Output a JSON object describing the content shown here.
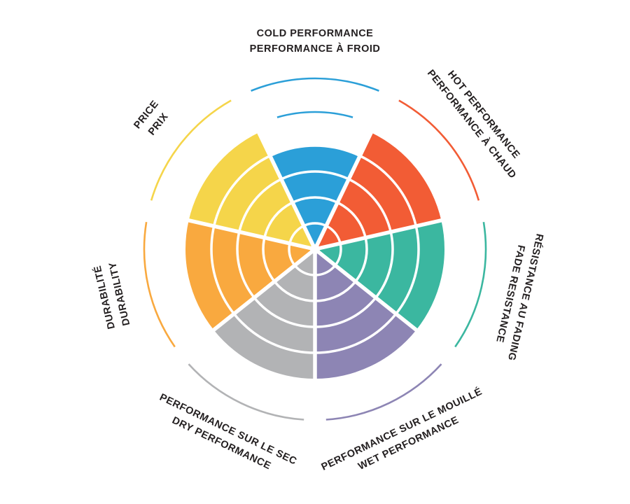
{
  "page": {
    "background": "#ffffff",
    "text_color": "#231f20"
  },
  "chart_data": {
    "type": "radar",
    "style": "segmented-sector-rose",
    "max_value": 5,
    "ring_levels": [
      1,
      2,
      3,
      4
    ],
    "text_color": "#231f20",
    "sectors": [
      {
        "id": "cold-performance",
        "label_en": "COLD PERFORMANCE",
        "label_fr": "PERFORMANCE À FROID",
        "outer_line": "en",
        "value": 4,
        "color": "#2b9fd8",
        "has_level_marker_arc": true
      },
      {
        "id": "hot-performance",
        "label_en": "HOT PERFORMANCE",
        "label_fr": "PERFORMANCE À CHAUD",
        "outer_line": "en",
        "value": 5,
        "color": "#f25c35",
        "has_level_marker_arc": false
      },
      {
        "id": "fade-resistance",
        "label_en": "FADE RESISTANCE",
        "label_fr": "RÉSISTANCE AU FADING",
        "outer_line": "fr",
        "value": 5,
        "color": "#3bb7a0",
        "has_level_marker_arc": false
      },
      {
        "id": "wet-performance",
        "label_en": "WET PERFORMANCE",
        "label_fr": "PERFORMANCE SUR LE MOUILLÉ",
        "outer_line": "en",
        "value": 5,
        "color": "#8d85b4",
        "has_level_marker_arc": false
      },
      {
        "id": "dry-performance",
        "label_en": "DRY PERFORMANCE",
        "label_fr": "PERFORMANCE SUR LE SEC",
        "outer_line": "en",
        "value": 5,
        "color": "#b2b3b5",
        "has_level_marker_arc": false
      },
      {
        "id": "durability",
        "label_en": "DURABILITY",
        "label_fr": "DURABILITÉ",
        "outer_line": "fr",
        "value": 5,
        "color": "#f9a93f",
        "has_level_marker_arc": false
      },
      {
        "id": "price",
        "label_en": "PRICE",
        "label_fr": "PRIX",
        "outer_line": "en",
        "value": 5,
        "color": "#f5d54a",
        "has_level_marker_arc": false
      }
    ]
  }
}
